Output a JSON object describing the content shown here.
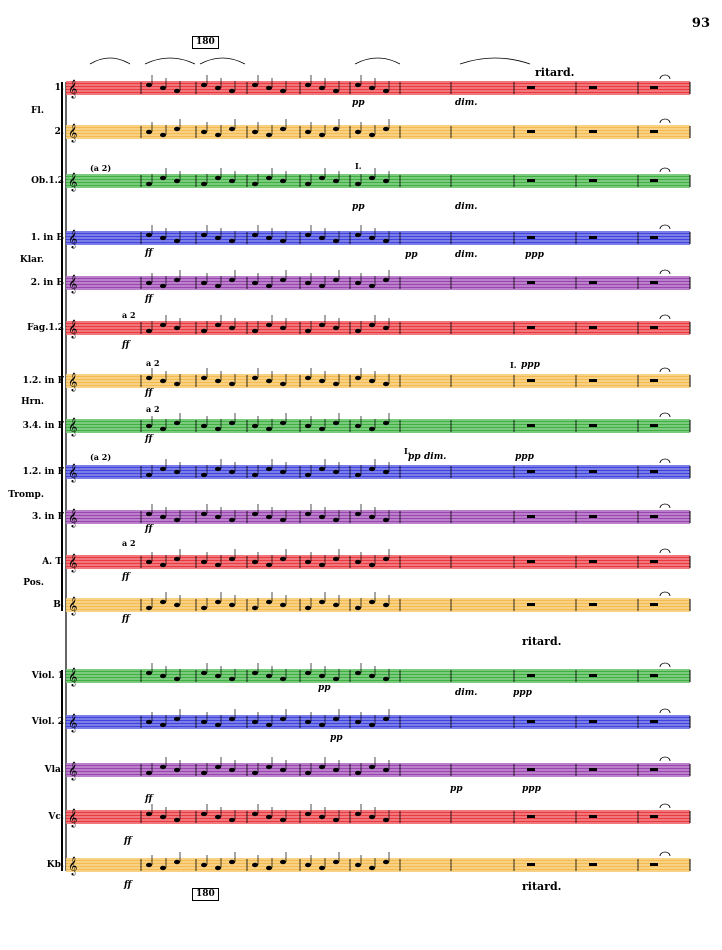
{
  "page_number": "93",
  "rehearsal_mark": "180",
  "tempo_markings": [
    "ritard.",
    "ritard.",
    "ritard."
  ],
  "staves": [
    {
      "label": "1.",
      "color": "#e8242a"
    },
    {
      "label": "2.",
      "color": "#f3b53a"
    },
    {
      "label": "Ob.1.2",
      "color": "#29a82e"
    },
    {
      "label": "1. in B",
      "color": "#2b2fd9"
    },
    {
      "label": "2. in B",
      "color": "#8e32a8"
    },
    {
      "label": "Fag.1.2",
      "color": "#e8242a"
    },
    {
      "label": "1.2. in F",
      "color": "#f3b53a"
    },
    {
      "label": "3.4. in F",
      "color": "#29a82e"
    },
    {
      "label": "1.2. in F",
      "color": "#2b2fd9"
    },
    {
      "label": "3. in F",
      "color": "#8e32a8"
    },
    {
      "label": "A. T.",
      "color": "#e8242a"
    },
    {
      "label": "B.",
      "color": "#f3b53a"
    },
    {
      "label": "Viol. 1",
      "color": "#29a82e"
    },
    {
      "label": "Viol. 2",
      "color": "#2b2fd9"
    },
    {
      "label": "Vla.",
      "color": "#8e32a8"
    },
    {
      "label": "Vc.",
      "color": "#e8242a"
    },
    {
      "label": "Kb.",
      "color": "#f3b53a"
    }
  ],
  "group_labels": [
    "Fl.",
    "Klar.",
    "Hrn.",
    "Tromp.",
    "Pos."
  ],
  "annotations": {
    "a2": "a 2",
    "a2_paren": "(a 2)",
    "solo": "I."
  },
  "dynamics": {
    "ff": "ff",
    "pp": "pp",
    "ppp": "ppp",
    "dim": "dim."
  }
}
